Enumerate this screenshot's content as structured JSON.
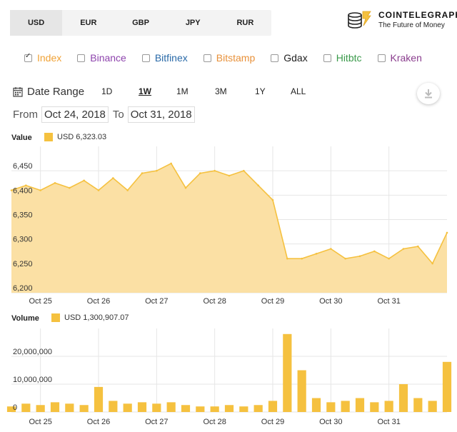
{
  "currencies": [
    "USD",
    "EUR",
    "GBP",
    "JPY",
    "RUR"
  ],
  "active_currency": "USD",
  "brand": {
    "title": "COINTELEGRAPH",
    "tagline": "The Future of Money"
  },
  "exchanges": [
    {
      "label": "Index",
      "color": "#f0a236",
      "checked": true
    },
    {
      "label": "Binance",
      "color": "#8e44ad",
      "checked": false
    },
    {
      "label": "Bitfinex",
      "color": "#2a6aa8",
      "checked": false
    },
    {
      "label": "Bitstamp",
      "color": "#e8913a",
      "checked": false
    },
    {
      "label": "Gdax",
      "color": "#222222",
      "checked": false
    },
    {
      "label": "Hitbtc",
      "color": "#3a9a4a",
      "checked": false
    },
    {
      "label": "Kraken",
      "color": "#8a3d8e",
      "checked": false
    }
  ],
  "range": {
    "title": "Date Range",
    "options": [
      "1D",
      "1W",
      "1M",
      "3M",
      "1Y",
      "ALL"
    ],
    "active": "1W"
  },
  "period": {
    "from_label": "From",
    "from": "Oct 24, 2018",
    "to_label": "To",
    "to": "Oct 31, 2018"
  },
  "colors": {
    "series": "#f5c13f",
    "area_fill": "#fbe0a4",
    "grid": "#e6e6e6"
  },
  "chart_data": [
    {
      "type": "area",
      "panel": "Value",
      "legend": "USD  6,323.03",
      "x": [
        "Oct 24 12:00",
        "Oct 24 18:00",
        "Oct 25 00:00",
        "Oct 25 06:00",
        "Oct 25 12:00",
        "Oct 25 18:00",
        "Oct 26 00:00",
        "Oct 26 06:00",
        "Oct 26 12:00",
        "Oct 26 18:00",
        "Oct 27 00:00",
        "Oct 27 06:00",
        "Oct 27 12:00",
        "Oct 27 18:00",
        "Oct 28 00:00",
        "Oct 28 06:00",
        "Oct 28 12:00",
        "Oct 28 18:00",
        "Oct 29 00:00",
        "Oct 29 04:00",
        "Oct 29 06:00",
        "Oct 29 12:00",
        "Oct 29 18:00",
        "Oct 30 00:00",
        "Oct 30 06:00",
        "Oct 30 12:00",
        "Oct 30 18:00",
        "Oct 31 00:00",
        "Oct 31 06:00",
        "Oct 31 12:00",
        "Oct 31 18:00"
      ],
      "values": [
        6410,
        6420,
        6410,
        6425,
        6415,
        6430,
        6410,
        6435,
        6410,
        6445,
        6450,
        6465,
        6415,
        6445,
        6450,
        6440,
        6450,
        6420,
        6390,
        6270,
        6270,
        6280,
        6290,
        6270,
        6275,
        6285,
        6270,
        6290,
        6295,
        6260,
        6323
      ],
      "ylim": [
        6200,
        6500
      ],
      "yticks": [
        "6,450",
        "6,400",
        "6,350",
        "6,300",
        "6,250",
        "6,200"
      ],
      "xticks": [
        "Oct 25",
        "Oct 26",
        "Oct 27",
        "Oct 28",
        "Oct 29",
        "Oct 30",
        "Oct 31"
      ]
    },
    {
      "type": "bar",
      "panel": "Volume",
      "legend": "USD  1,300,907.07",
      "x": [
        "Oct 24 12:00",
        "Oct 24 18:00",
        "Oct 25 00:00",
        "Oct 25 06:00",
        "Oct 25 12:00",
        "Oct 25 18:00",
        "Oct 26 00:00",
        "Oct 26 06:00",
        "Oct 26 12:00",
        "Oct 26 18:00",
        "Oct 27 00:00",
        "Oct 27 06:00",
        "Oct 27 12:00",
        "Oct 27 18:00",
        "Oct 28 00:00",
        "Oct 28 06:00",
        "Oct 28 12:00",
        "Oct 28 18:00",
        "Oct 29 00:00",
        "Oct 29 04:00",
        "Oct 29 06:00",
        "Oct 29 12:00",
        "Oct 29 18:00",
        "Oct 30 00:00",
        "Oct 30 06:00",
        "Oct 30 12:00",
        "Oct 30 18:00",
        "Oct 31 00:00",
        "Oct 31 06:00",
        "Oct 31 12:00",
        "Oct 31 18:00"
      ],
      "values": [
        2000000,
        3000000,
        2500000,
        3500000,
        3000000,
        2500000,
        9000000,
        4000000,
        3000000,
        3500000,
        3000000,
        3500000,
        2500000,
        2000000,
        2000000,
        2500000,
        2000000,
        2500000,
        4000000,
        28000000,
        15000000,
        5000000,
        3500000,
        4000000,
        5000000,
        3500000,
        4000000,
        10000000,
        5000000,
        4000000,
        18000000
      ],
      "ylim": [
        0,
        30000000
      ],
      "yticks": [
        "20,000,000",
        "10,000,000",
        "0"
      ],
      "xticks": [
        "Oct 25",
        "Oct 26",
        "Oct 27",
        "Oct 28",
        "Oct 29",
        "Oct 30",
        "Oct 31"
      ]
    }
  ]
}
